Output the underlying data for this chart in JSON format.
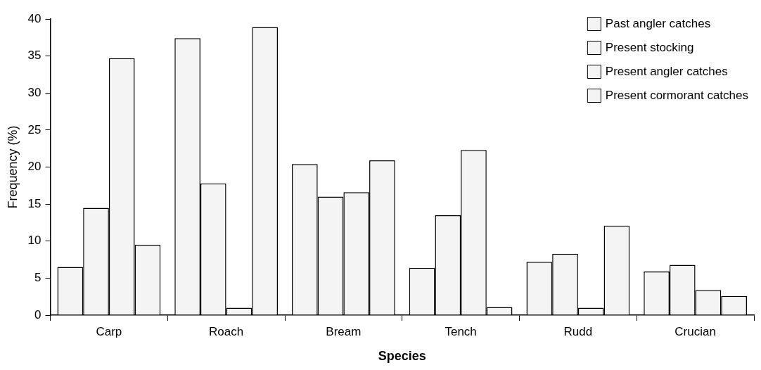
{
  "chart_data": {
    "type": "bar",
    "xlabel": "Species",
    "ylabel": "Frequency (%)",
    "categories": [
      "Carp",
      "Roach",
      "Bream",
      "Tench",
      "Rudd",
      "Crucian"
    ],
    "series": [
      {
        "name": "Past angler catches",
        "color": "#f4f4f4",
        "values": [
          6.5,
          37.4,
          20.4,
          6.4,
          7.2,
          5.9
        ]
      },
      {
        "name": "Present stocking",
        "color": "#f4f4f4",
        "values": [
          14.5,
          17.8,
          16.0,
          13.5,
          8.3,
          6.8
        ]
      },
      {
        "name": "Present angler catches",
        "color": "#f4f4f4",
        "values": [
          34.7,
          1.0,
          16.6,
          22.3,
          1.0,
          3.4
        ]
      },
      {
        "name": "Present cormorant catches",
        "color": "#f4f4f4",
        "values": [
          9.5,
          38.9,
          20.9,
          1.1,
          12.1,
          2.6
        ]
      }
    ],
    "ylim": [
      0,
      40
    ],
    "yticks": [
      0,
      5,
      10,
      15,
      20,
      25,
      30,
      35,
      40
    ],
    "grid": false,
    "legend": "top right"
  }
}
